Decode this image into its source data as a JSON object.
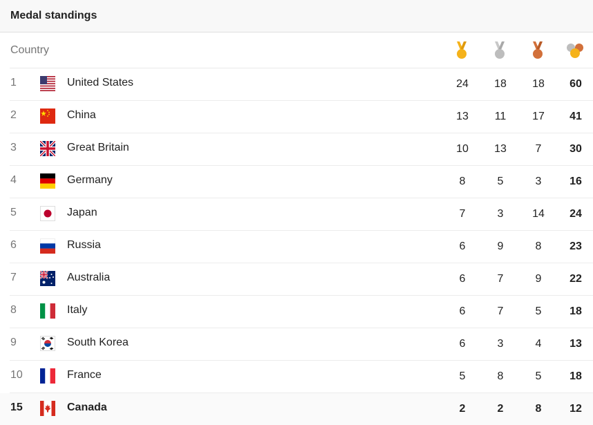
{
  "header": {
    "title": "Medal standings"
  },
  "columns": {
    "country_label": "Country",
    "icons": [
      "gold-medal-icon",
      "silver-medal-icon",
      "bronze-medal-icon",
      "total-medals-icon"
    ],
    "colors": {
      "gold": "#f5b21a",
      "silver": "#bdbdbd",
      "bronze": "#d2703a"
    }
  },
  "rows": [
    {
      "rank": "1",
      "country": "United States",
      "flag": "us-flag-icon",
      "gold": "24",
      "silver": "18",
      "bronze": "18",
      "total": "60"
    },
    {
      "rank": "2",
      "country": "China",
      "flag": "cn-flag-icon",
      "gold": "13",
      "silver": "11",
      "bronze": "17",
      "total": "41"
    },
    {
      "rank": "3",
      "country": "Great Britain",
      "flag": "gb-flag-icon",
      "gold": "10",
      "silver": "13",
      "bronze": "7",
      "total": "30"
    },
    {
      "rank": "4",
      "country": "Germany",
      "flag": "de-flag-icon",
      "gold": "8",
      "silver": "5",
      "bronze": "3",
      "total": "16"
    },
    {
      "rank": "5",
      "country": "Japan",
      "flag": "jp-flag-icon",
      "gold": "7",
      "silver": "3",
      "bronze": "14",
      "total": "24"
    },
    {
      "rank": "6",
      "country": "Russia",
      "flag": "ru-flag-icon",
      "gold": "6",
      "silver": "9",
      "bronze": "8",
      "total": "23"
    },
    {
      "rank": "7",
      "country": "Australia",
      "flag": "au-flag-icon",
      "gold": "6",
      "silver": "7",
      "bronze": "9",
      "total": "22"
    },
    {
      "rank": "8",
      "country": "Italy",
      "flag": "it-flag-icon",
      "gold": "6",
      "silver": "7",
      "bronze": "5",
      "total": "18"
    },
    {
      "rank": "9",
      "country": "South Korea",
      "flag": "kr-flag-icon",
      "gold": "6",
      "silver": "3",
      "bronze": "4",
      "total": "13"
    },
    {
      "rank": "10",
      "country": "France",
      "flag": "fr-flag-icon",
      "gold": "5",
      "silver": "8",
      "bronze": "5",
      "total": "18"
    },
    {
      "rank": "15",
      "country": "Canada",
      "flag": "ca-flag-icon",
      "gold": "2",
      "silver": "2",
      "bronze": "8",
      "total": "12"
    }
  ]
}
